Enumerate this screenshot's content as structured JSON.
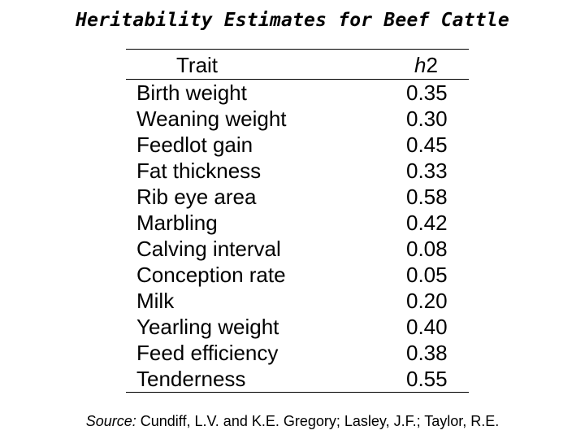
{
  "title": "Heritability Estimates for Beef Cattle",
  "table": {
    "header": {
      "trait": "Trait",
      "h2_letter": "h",
      "h2_digit": "2"
    },
    "rows": [
      {
        "trait": "Birth weight",
        "value": "0.35"
      },
      {
        "trait": "Weaning weight",
        "value": "0.30"
      },
      {
        "trait": "Feedlot gain",
        "value": "0.45"
      },
      {
        "trait": "Fat thickness",
        "value": "0.33"
      },
      {
        "trait": "Rib eye area",
        "value": "0.58"
      },
      {
        "trait": "Marbling",
        "value": "0.42"
      },
      {
        "trait": "Calving interval",
        "value": "0.08"
      },
      {
        "trait": "Conception rate",
        "value": "0.05"
      },
      {
        "trait": "Milk",
        "value": "0.20"
      },
      {
        "trait": "Yearling weight",
        "value": "0.40"
      },
      {
        "trait": "Feed efficiency",
        "value": "0.38"
      },
      {
        "trait": "Tenderness",
        "value": "0.55"
      }
    ]
  },
  "source": {
    "label": "Source:",
    "text": " Cundiff, L.V. and K.E. Gregory; Lasley, J.F.; Taylor, R.E."
  }
}
